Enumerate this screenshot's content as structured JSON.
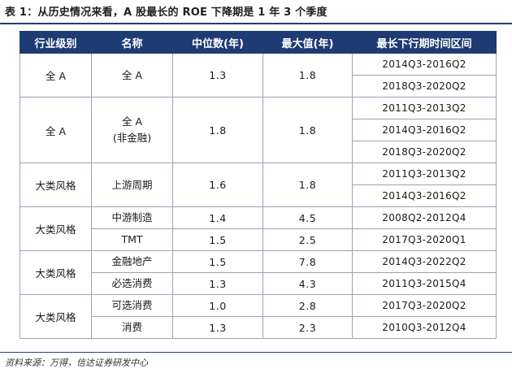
{
  "caption": "表 1：从历史情况来看，A 股最长的 ROE 下降期是 1 年 3 个季度",
  "headers": [
    "行业级别",
    "名称",
    "中位数(年)",
    "最大值(年)",
    "最长下行期时间区间"
  ],
  "groups": [
    {
      "level": "全 A",
      "names": [
        {
          "name": [
            "全 A"
          ],
          "median": "1.3",
          "max": "1.8",
          "periods": [
            "2014Q3-2016Q2",
            "2018Q3-2020Q2"
          ]
        }
      ]
    },
    {
      "level": "全 A",
      "names": [
        {
          "name": [
            "全 A",
            "(非金融)"
          ],
          "median": "1.8",
          "max": "1.8",
          "periods": [
            "2011Q3-2013Q2",
            "2014Q3-2016Q2",
            "2018Q3-2020Q2"
          ]
        }
      ]
    },
    {
      "level": "大类风格",
      "names": [
        {
          "name": [
            "上游周期"
          ],
          "median": "1.6",
          "max": "1.8",
          "periods": [
            "2011Q3-2013Q2",
            "2014Q3-2016Q2"
          ]
        }
      ]
    },
    {
      "level": "大类风格",
      "names": [
        {
          "name": [
            "中游制造"
          ],
          "median": "1.4",
          "max": "4.5",
          "periods": [
            "2008Q2-2012Q4"
          ]
        },
        {
          "name": [
            "TMT"
          ],
          "median": "1.5",
          "max": "2.5",
          "periods": [
            "2017Q3-2020Q1"
          ]
        }
      ]
    },
    {
      "level": "大类风格",
      "names": [
        {
          "name": [
            "金融地产"
          ],
          "median": "1.5",
          "max": "7.8",
          "periods": [
            "2014Q3-2022Q2"
          ]
        },
        {
          "name": [
            "必选消费"
          ],
          "median": "1.3",
          "max": "4.3",
          "periods": [
            "2011Q3-2015Q4"
          ]
        }
      ]
    },
    {
      "level": "大类风格",
      "names": [
        {
          "name": [
            "可选消费"
          ],
          "median": "1.0",
          "max": "2.8",
          "periods": [
            "2017Q3-2020Q2"
          ]
        },
        {
          "name": [
            "消费"
          ],
          "median": "1.3",
          "max": "2.3",
          "periods": [
            "2010Q3-2012Q4"
          ]
        }
      ]
    }
  ],
  "source": "资料来源：万得，信达证券研发中心"
}
